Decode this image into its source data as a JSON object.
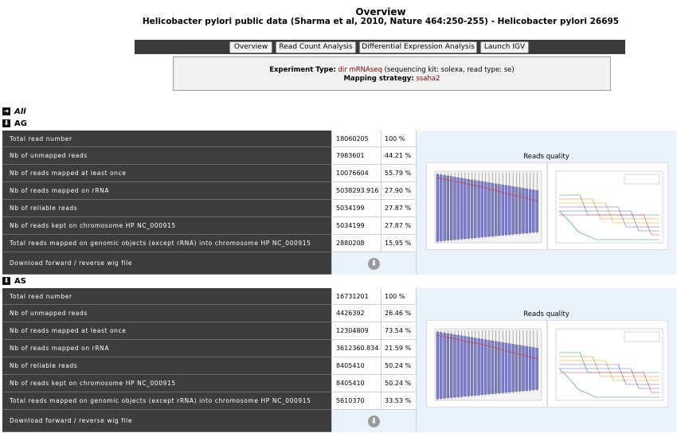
{
  "header": {
    "title": "Overview",
    "subtitle": "Helicobacter pylori public data (Sharma et al, 2010, Nature 464:250-255) - Helicobacter pylori 26695"
  },
  "nav": {
    "overview": "Overview",
    "read_count": "Read Count Analysis",
    "diff_expr": "Differential Expression Analysis",
    "launch_igv": "Launch IGV"
  },
  "info": {
    "experiment_type_label": "Experiment Type:",
    "experiment_type_value": "dir mRNAseq",
    "experiment_type_detail": "(sequencing kit: solexa, read type: se)",
    "mapping_label": "Mapping strategy:",
    "mapping_value": "ssaha2"
  },
  "all_label": "All",
  "quality_title": "Reads quality",
  "sections": [
    {
      "name": "AG",
      "rows": [
        {
          "label": "Total read number",
          "value": "18060205",
          "pct": "100 %"
        },
        {
          "label": "Nb of unmapped reads",
          "value": "7983601",
          "pct": "44.21 %"
        },
        {
          "label": "Nb of reads mapped at least once",
          "value": "10076604",
          "pct": "55.79 %"
        },
        {
          "label": "Nb of reads mapped on rRNA",
          "value": "5038293.916",
          "pct": "27.90 %"
        },
        {
          "label": "Nb of reliable reads",
          "value": "5034199",
          "pct": "27.87 %"
        },
        {
          "label": "Nb of reads kept on chromosome HP NC_000915",
          "value": "5034199",
          "pct": "27.87 %"
        },
        {
          "label": "Total reads mapped on genomic objects (except rRNA) into chromosome HP NC_000915",
          "value": "2880208",
          "pct": "15.95 %"
        }
      ],
      "download_label": "Download forward / reverse wig file"
    },
    {
      "name": "AS",
      "rows": [
        {
          "label": "Total read number",
          "value": "16731201",
          "pct": "100 %"
        },
        {
          "label": "Nb of unmapped reads",
          "value": "4426392",
          "pct": "26.46 %"
        },
        {
          "label": "Nb of reads mapped at least once",
          "value": "12304809",
          "pct": "73.54 %"
        },
        {
          "label": "Nb of reads mapped on rRNA",
          "value": "3612360.834",
          "pct": "21.59 %"
        },
        {
          "label": "Nb of reliable reads",
          "value": "8405410",
          "pct": "50.24 %"
        },
        {
          "label": "Nb of reads kept on chromosome HP NC_000915",
          "value": "8405410",
          "pct": "50.24 %"
        },
        {
          "label": "Total reads mapped on genomic objects (except rRNA) into chromosome HP NC_000915",
          "value": "5610370",
          "pct": "33.53 %"
        }
      ],
      "download_label": "Download forward / reverse wig file"
    }
  ],
  "icons": {
    "collapse": "arrow-down-icon",
    "expand": "arrow-right-icon",
    "download": "download-icon"
  }
}
